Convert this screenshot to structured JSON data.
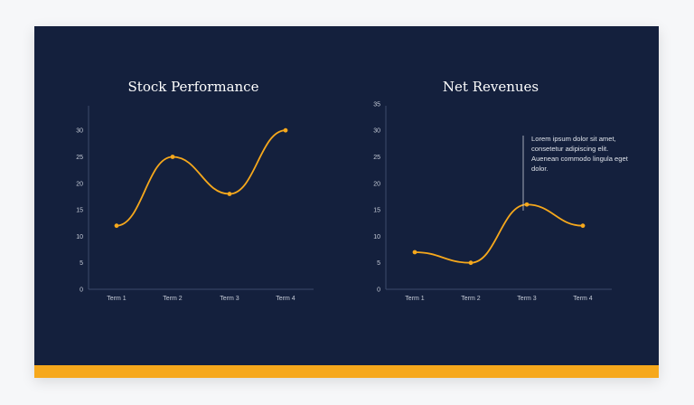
{
  "colors": {
    "background": "#14203d",
    "accent": "#f6a81c",
    "axis": "#3b4a6b",
    "text": "#ffffff"
  },
  "chart_data": [
    {
      "type": "line",
      "title": "Stock Performance",
      "categories": [
        "Term 1",
        "Term 2",
        "Term 3",
        "Term 4"
      ],
      "values": [
        12,
        25,
        18,
        30
      ],
      "yticks": [
        0,
        5,
        10,
        15,
        20,
        25,
        30
      ],
      "ylim": [
        0,
        34
      ],
      "xlabel": "",
      "ylabel": "",
      "grid": false,
      "smooth": true
    },
    {
      "type": "line",
      "title": "Net Revenues",
      "categories": [
        "Term 1",
        "Term 2",
        "Term 3",
        "Term 4"
      ],
      "values": [
        7,
        5,
        16,
        12
      ],
      "yticks": [
        0,
        5,
        10,
        15,
        20,
        25,
        30,
        35
      ],
      "ylim": [
        0,
        35
      ],
      "xlabel": "",
      "ylabel": "",
      "grid": false,
      "smooth": true,
      "annotation": {
        "at": "Term 3",
        "text": "Lorem ipsum dolor sit amet, consetetur adipiscing elit. Auenean commodo lingula eget dolor."
      }
    }
  ]
}
